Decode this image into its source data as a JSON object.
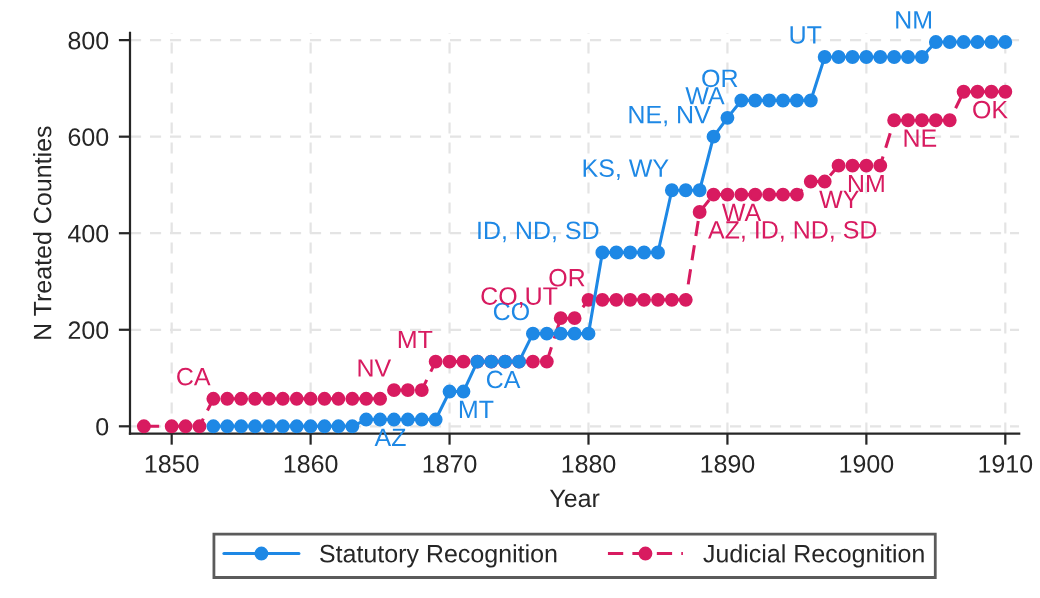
{
  "chart_data": {
    "type": "line",
    "xlabel": "Year",
    "ylabel": "N Treated Counties",
    "x": [
      1848,
      1850,
      1851,
      1852,
      1853,
      1854,
      1855,
      1856,
      1857,
      1858,
      1859,
      1860,
      1861,
      1862,
      1863,
      1864,
      1865,
      1866,
      1867,
      1868,
      1869,
      1870,
      1871,
      1872,
      1873,
      1874,
      1875,
      1876,
      1877,
      1878,
      1879,
      1880,
      1881,
      1882,
      1883,
      1884,
      1885,
      1886,
      1887,
      1888,
      1889,
      1890,
      1891,
      1892,
      1893,
      1894,
      1895,
      1896,
      1897,
      1898,
      1899,
      1900,
      1901,
      1902,
      1903,
      1904,
      1905,
      1906,
      1907,
      1908,
      1909,
      1910
    ],
    "series": [
      {
        "name": "Statutory Recognition",
        "color": "#1e88e5",
        "line_style": "solid",
        "values": [
          null,
          null,
          null,
          null,
          0,
          0,
          0,
          0,
          0,
          0,
          0,
          0,
          0,
          0,
          0,
          14,
          14,
          14,
          14,
          14,
          14,
          72,
          72,
          134,
          134,
          134,
          134,
          192,
          192,
          192,
          192,
          192,
          360,
          360,
          360,
          360,
          360,
          489,
          489,
          489,
          600,
          639,
          675,
          675,
          675,
          675,
          675,
          675,
          765,
          765,
          765,
          765,
          765,
          765,
          765,
          765,
          796,
          796,
          796,
          796,
          796,
          796
        ]
      },
      {
        "name": "Judicial Recognition",
        "color": "#d81b60",
        "line_style": "dashed",
        "values": [
          0,
          0,
          0,
          0,
          57,
          57,
          57,
          57,
          57,
          57,
          57,
          57,
          57,
          57,
          57,
          57,
          57,
          75,
          75,
          75,
          134,
          134,
          134,
          134,
          134,
          134,
          134,
          134,
          134,
          224,
          224,
          262,
          262,
          262,
          262,
          262,
          262,
          262,
          262,
          444,
          480,
          480,
          480,
          480,
          480,
          480,
          480,
          507,
          507,
          540,
          540,
          540,
          540,
          634,
          634,
          634,
          634,
          634,
          693,
          693,
          693,
          693
        ]
      }
    ],
    "annotations": [
      {
        "text": "CA",
        "x": 1853,
        "y": 57
      },
      {
        "text": "AZ",
        "x": 1864,
        "y": 14
      },
      {
        "text": "NV",
        "x": 1866,
        "y": 75
      },
      {
        "text": "MT",
        "x": 1869,
        "y": 134
      },
      {
        "text": "MT",
        "x": 1870,
        "y": 72
      },
      {
        "text": "CA",
        "x": 1872,
        "y": 134
      },
      {
        "text": "CO",
        "x": 1876,
        "y": 192
      },
      {
        "text": "CO,UT",
        "x": 1878,
        "y": 224
      },
      {
        "text": "OR",
        "x": 1880,
        "y": 262
      },
      {
        "text": "ID, ND, SD",
        "x": 1881,
        "y": 360
      },
      {
        "text": "KS, WY",
        "x": 1886,
        "y": 489
      },
      {
        "text": "AZ, ID, ND, SD",
        "x": 1888,
        "y": 444
      },
      {
        "text": "NE, NV",
        "x": 1889,
        "y": 600
      },
      {
        "text": "WA",
        "x": 1889,
        "y": 480
      },
      {
        "text": "WA",
        "x": 1890,
        "y": 639
      },
      {
        "text": "OR",
        "x": 1891,
        "y": 675
      },
      {
        "text": "WY",
        "x": 1896,
        "y": 507
      },
      {
        "text": "UT",
        "x": 1897,
        "y": 765
      },
      {
        "text": "NM",
        "x": 1898,
        "y": 540
      },
      {
        "text": "NE",
        "x": 1902,
        "y": 634
      },
      {
        "text": "NM",
        "x": 1905,
        "y": 796
      },
      {
        "text": "OK",
        "x": 1907,
        "y": 693
      }
    ],
    "xlim": [
      1847,
      1911
    ],
    "ylim": [
      -15,
      815
    ],
    "xticks": [
      1850,
      1860,
      1870,
      1880,
      1890,
      1900,
      1910
    ],
    "yticks": [
      0,
      200,
      400,
      600,
      800
    ],
    "grid": true,
    "legend": "bottom",
    "marker": "circle"
  }
}
